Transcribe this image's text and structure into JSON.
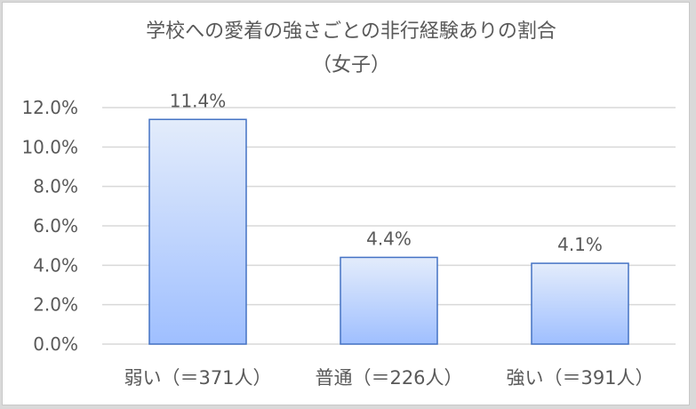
{
  "chart_data": {
    "type": "bar",
    "title": "学校への愛着の強さごとの非行経験ありの割合",
    "subtitle": "（女子）",
    "categories": [
      "弱い（＝371人）",
      "普通（＝226人）",
      "強い（＝391人）"
    ],
    "values": [
      11.4,
      4.4,
      4.1
    ],
    "data_labels": [
      "11.4%",
      "4.4%",
      "4.1%"
    ],
    "ylim": [
      0,
      12
    ],
    "yticks": [
      "0.0%",
      "2.0%",
      "4.0%",
      "6.0%",
      "8.0%",
      "10.0%",
      "12.0%"
    ],
    "xlabel": "",
    "ylabel": "",
    "grid": true,
    "legend": "none",
    "colors": {
      "bar_top": "#e3ecfb",
      "bar_bottom": "#9fbfff",
      "bar_border": "#4472c4",
      "grid": "#d9d9d9",
      "text": "#595959"
    }
  }
}
